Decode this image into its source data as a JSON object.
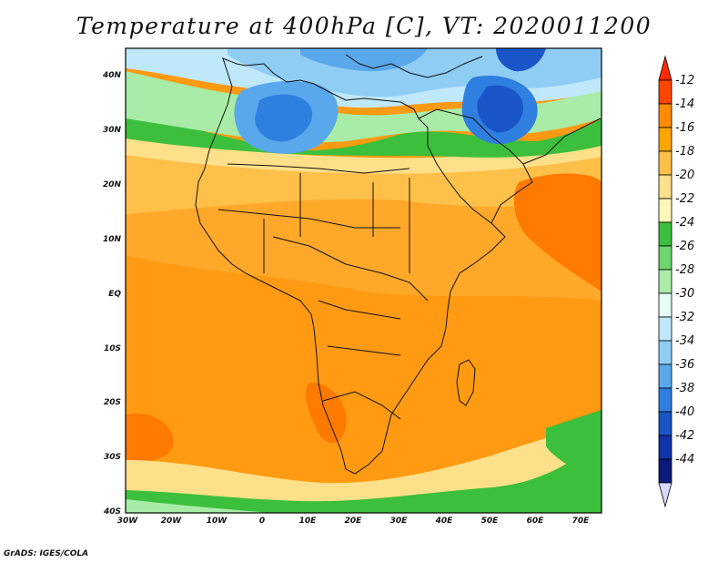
{
  "title": "Temperature at 400hPa [C], VT: 2020011200",
  "credit": "GrADS: IGES/COLA",
  "map": {
    "lat_labels": [
      "40N",
      "30N",
      "20N",
      "10N",
      "EQ",
      "10S",
      "20S",
      "30S",
      "40S"
    ],
    "lon_labels": [
      "30W",
      "20W",
      "10W",
      "0",
      "10E",
      "20E",
      "30E",
      "40E",
      "50E",
      "60E",
      "70E"
    ],
    "lat_range": [
      -40,
      45
    ],
    "lon_range": [
      -30,
      75
    ],
    "variable": "temperature",
    "units": "C",
    "level": "400hPa",
    "colors": {
      "warmest": "#ff8c00",
      "cool": "#2f66d9",
      "coldest": "#1a3fa8"
    }
  },
  "colorbar": {
    "labels": [
      "-12",
      "-14",
      "-16",
      "-18",
      "-20",
      "-22",
      "-24",
      "-26",
      "-28",
      "-30",
      "-32",
      "-34",
      "-36",
      "-38",
      "-40",
      "-42",
      "-44"
    ],
    "colors": [
      "#ff4500",
      "#ff8c00",
      "#ffa500",
      "#ffc04a",
      "#ffe08a",
      "#fff7b8",
      "#3cbf3c",
      "#6ed66e",
      "#a8eca8",
      "#e6fff6",
      "#bfe8fb",
      "#8fcdf5",
      "#5aa8ec",
      "#2f7fe0",
      "#1a55c8",
      "#0f33a8",
      "#0a1a7a"
    ],
    "top_arrow_color": "#ff2a00",
    "bottom_arrow_color": "#d9d9ff"
  }
}
